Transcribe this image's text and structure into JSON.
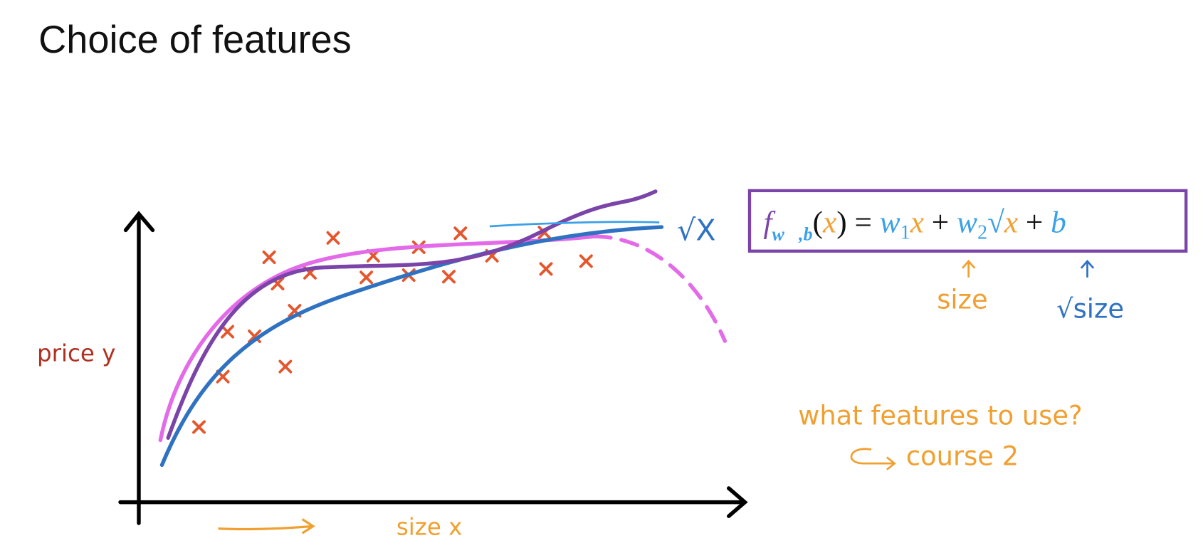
{
  "title": "Choice of features",
  "axis": {
    "y_label": "price y",
    "x_label": "size x"
  },
  "curve_label": "√X",
  "formula": [
    "f",
    "w⃗,b",
    "(",
    "x",
    ")",
    " = ",
    "w",
    "1",
    "x",
    " + ",
    "w",
    "2",
    "√",
    "x",
    " + ",
    "b"
  ],
  "annotations": {
    "size": "size",
    "sqrt_size": "√size",
    "question": "what features to use?",
    "course": "course 2"
  }
}
